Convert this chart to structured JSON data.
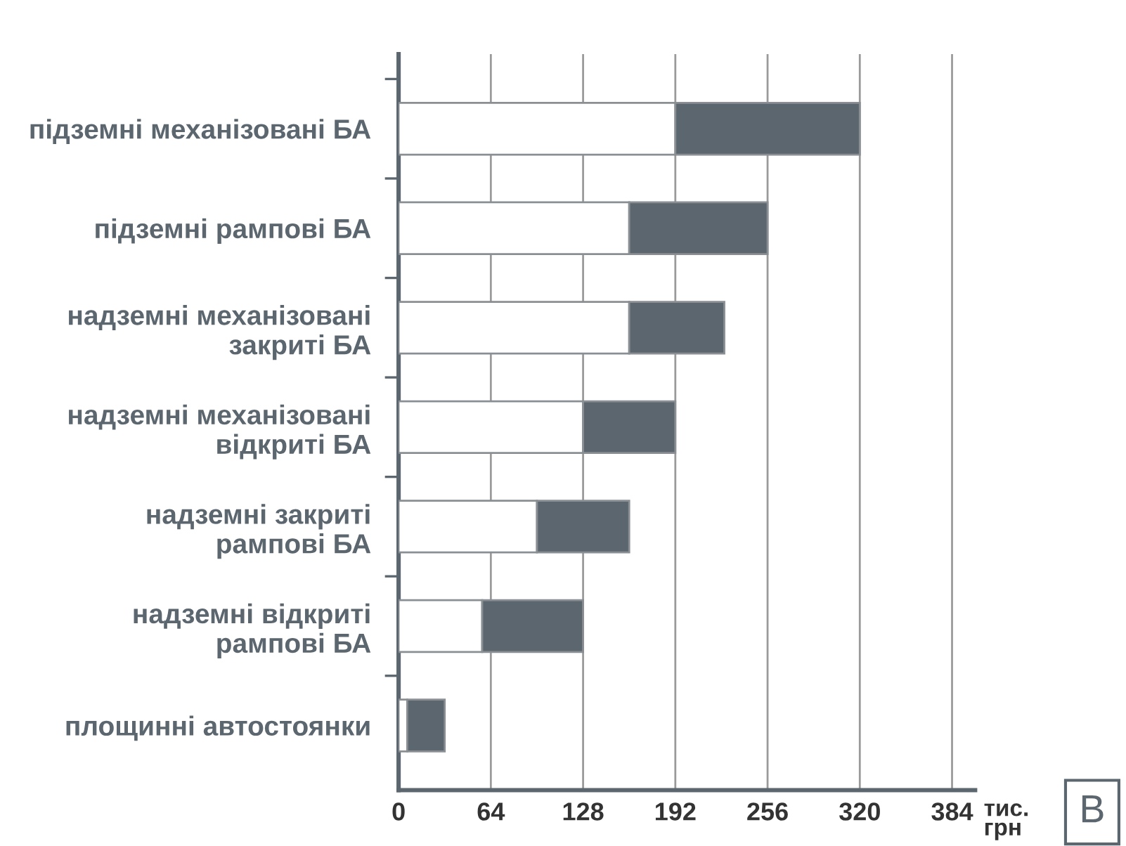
{
  "chart_data": {
    "type": "bar",
    "orientation": "horizontal",
    "stacked": true,
    "categories": [
      "підземні механізовані БА",
      "підземні рампові БА",
      "надземні механізовані\nзакриті БА",
      "надземні механізовані\nвідкриті БА",
      "надземні закриті\nрампові БА",
      "надземні відкриті\nрампові БА",
      "площинні автостоянки"
    ],
    "series": [
      {
        "color": "#ffffff",
        "values": [
          192,
          160,
          160,
          128,
          96,
          58,
          6
        ]
      },
      {
        "color": "#5b666e",
        "values": [
          128,
          96,
          66,
          64,
          64,
          70,
          26
        ]
      }
    ],
    "xlabel": "тис.\nгрн",
    "xlim": [
      0,
      400
    ],
    "xticks": [
      0,
      64,
      128,
      192,
      256,
      320,
      384
    ],
    "grid": "x",
    "legend": false,
    "annotations": [
      "B"
    ]
  }
}
